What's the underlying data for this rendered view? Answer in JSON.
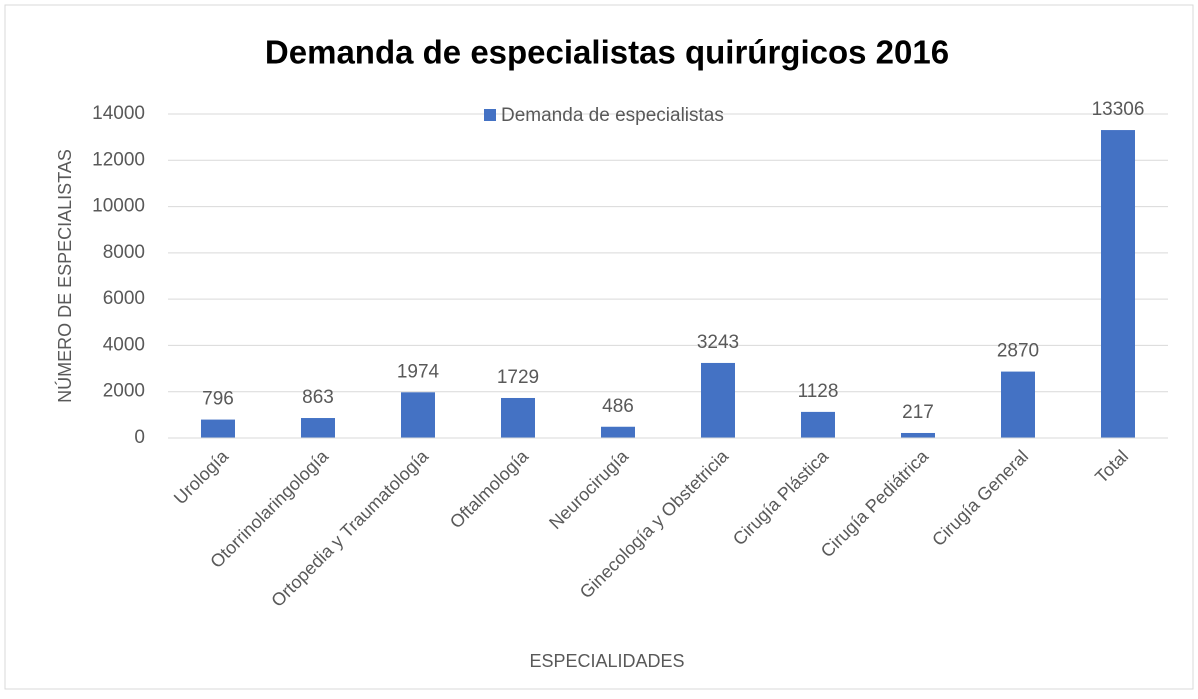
{
  "chart_data": {
    "type": "bar",
    "title": "Demanda de especialistas quirúrgicos 2016",
    "x_label": "ESPECIALIDADES",
    "y_label": "NÚMERO DE ESPECIALISTAS",
    "categories": [
      "Urología",
      "Otorrinolaringología",
      "Ortopedia y Traumatología",
      "Oftalmología",
      "Neurocirugía",
      "Ginecología y Obstetricia",
      "Cirugía Plástica",
      "Cirugía Pediátrica",
      "Cirugía General",
      "Total"
    ],
    "series": [
      {
        "name": "Demanda de especialistas",
        "color": "#4472c4",
        "values": [
          796,
          863,
          1974,
          1729,
          486,
          3243,
          1128,
          217,
          2870,
          13306
        ]
      }
    ],
    "ylim": [
      0,
      14000
    ],
    "yticks": [
      0,
      2000,
      4000,
      6000,
      8000,
      10000,
      12000,
      14000
    ],
    "grid": true,
    "legend": "top"
  }
}
